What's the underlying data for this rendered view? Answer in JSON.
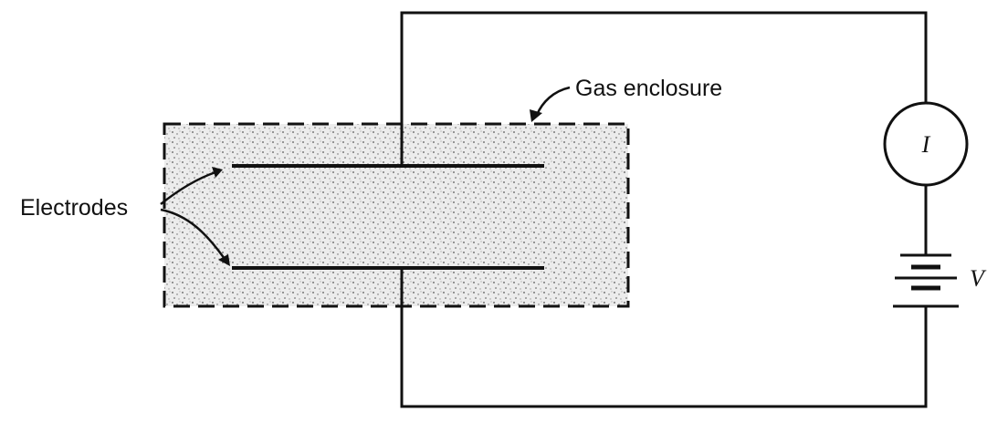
{
  "labels": {
    "gas_enclosure": "Gas enclosure",
    "electrodes": "Electrodes",
    "current": "I",
    "voltage": "V"
  },
  "colors": {
    "line": "#111111",
    "gas_fill": "#e9e9e9",
    "background": "#ffffff"
  }
}
